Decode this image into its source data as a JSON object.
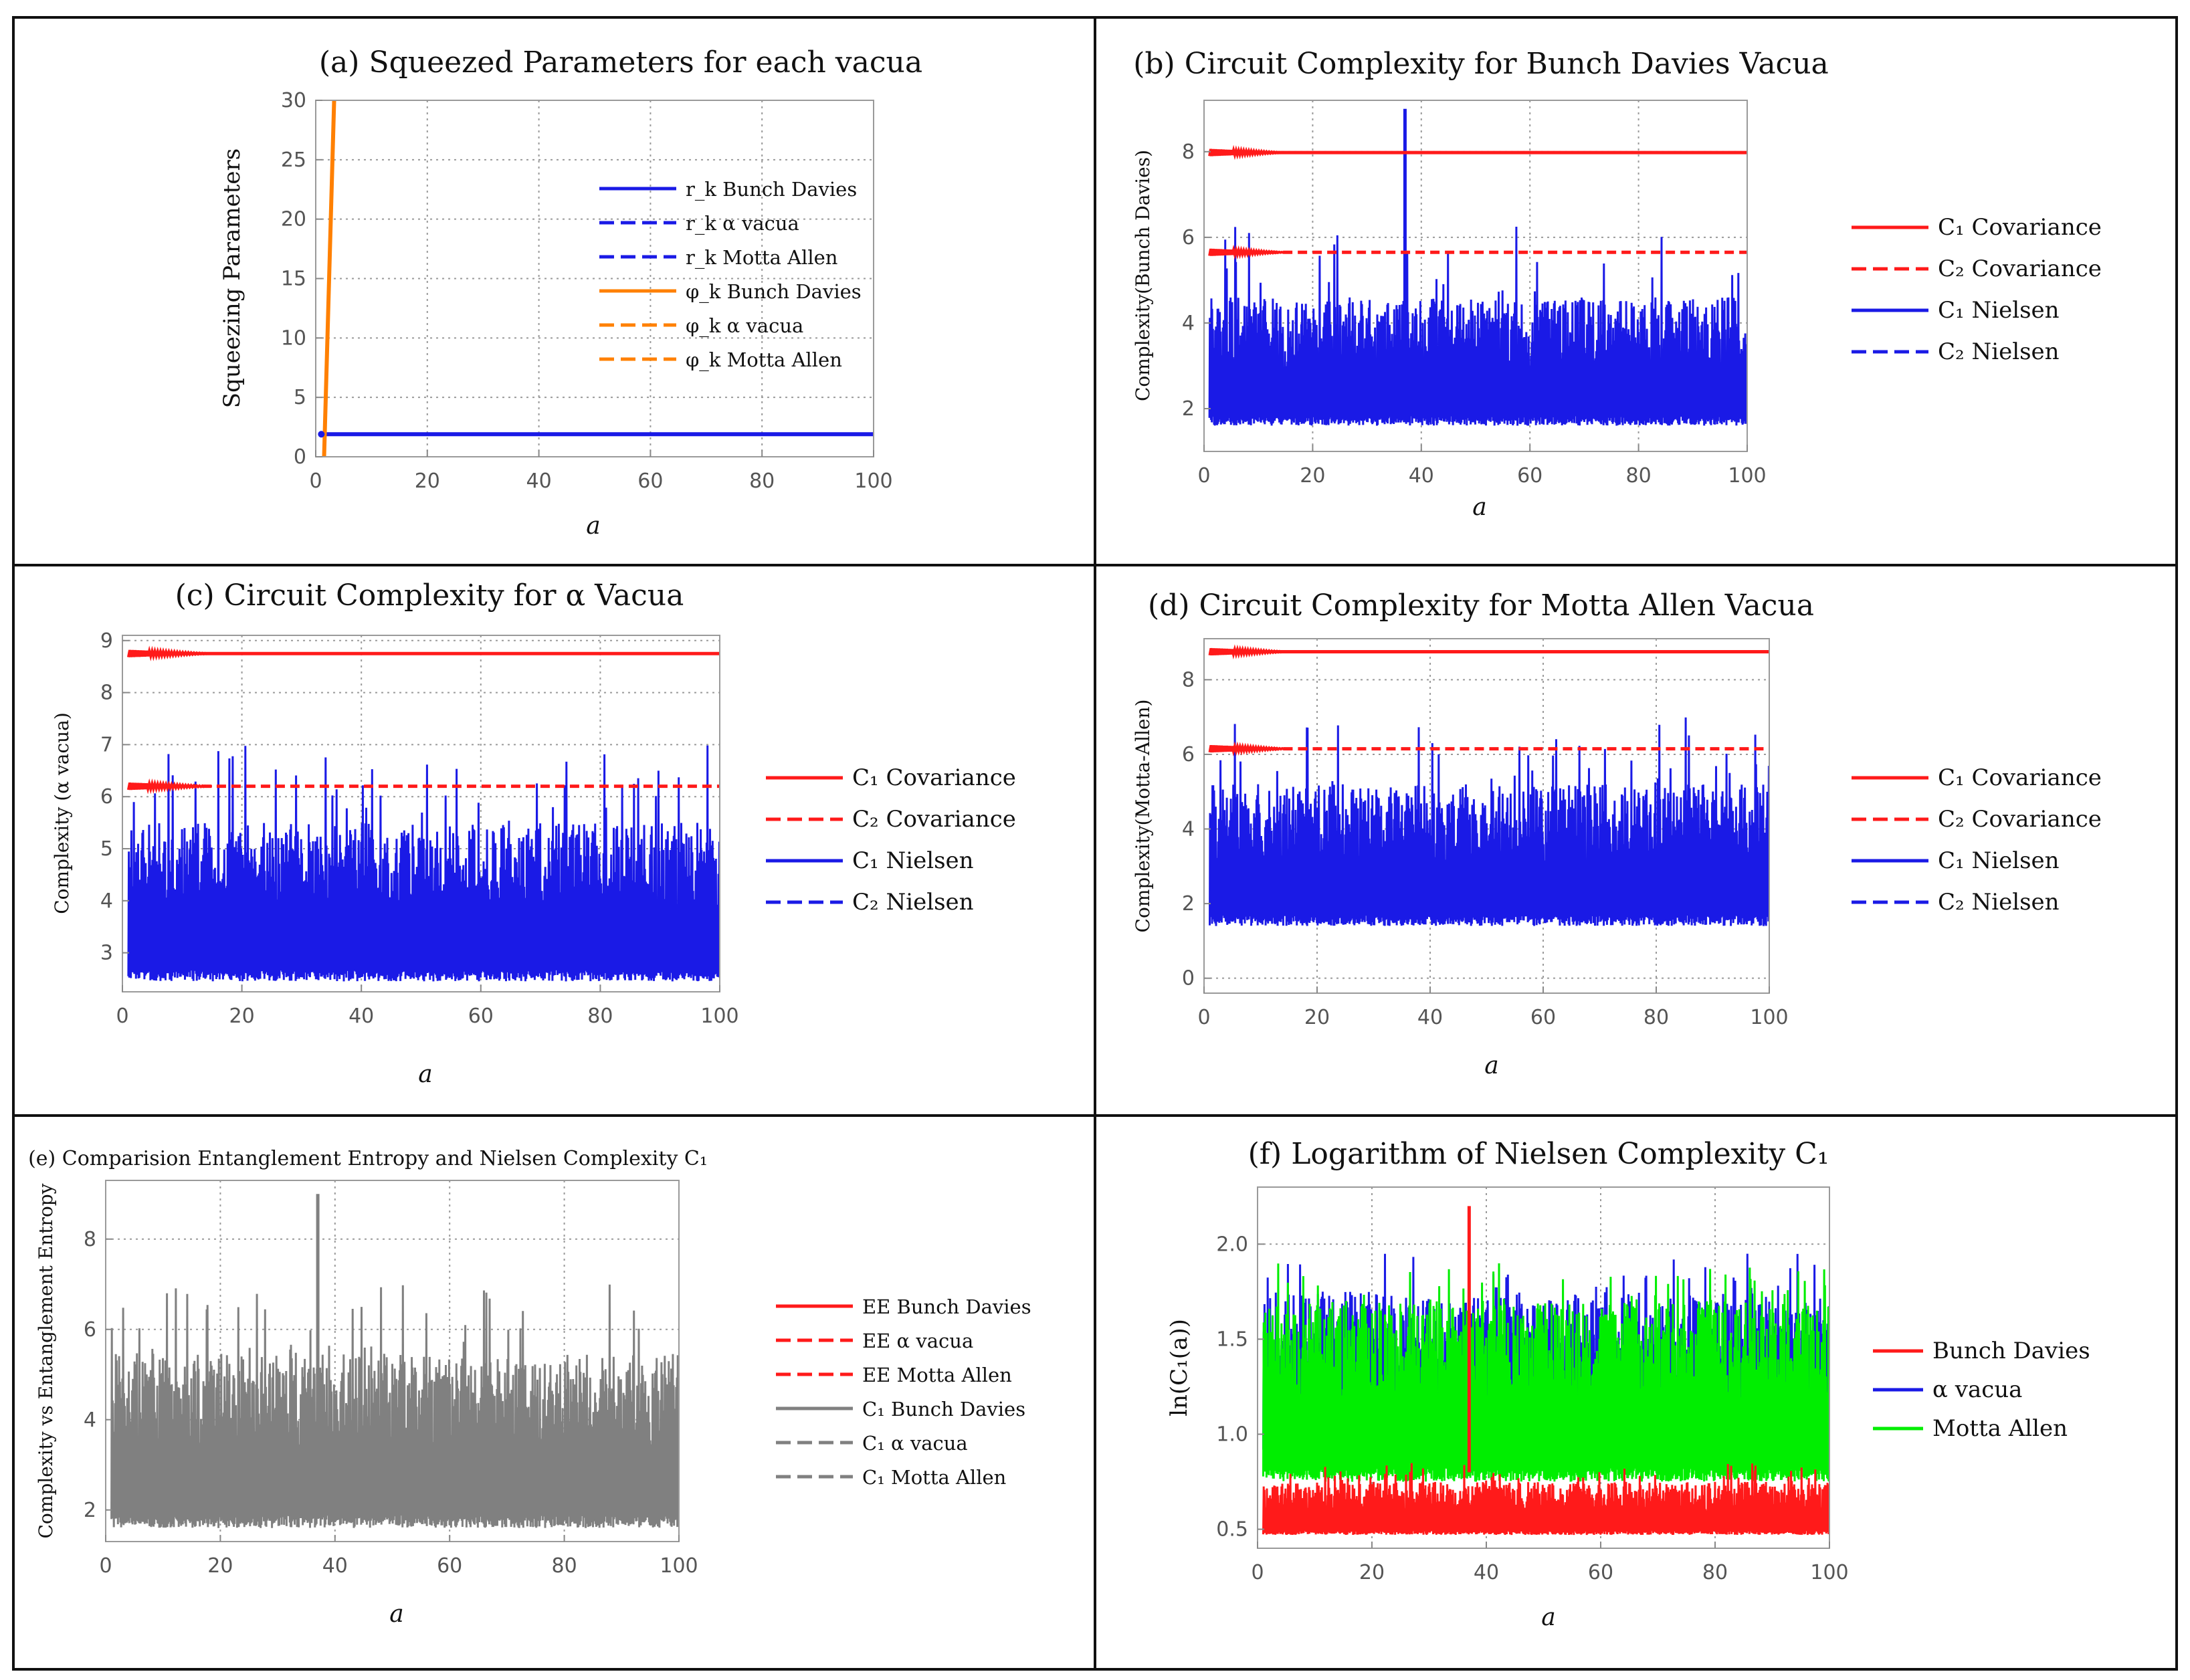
{
  "chart_data": [
    {
      "id": "a",
      "type": "line",
      "title": "(a) Squeezed Parameters for each vacua",
      "xlabel": "a",
      "ylabel": "Squeezing Parameters",
      "xlim": [
        0,
        100
      ],
      "ylim": [
        0,
        30
      ],
      "xticks": [
        0,
        20,
        40,
        60,
        80,
        100
      ],
      "yticks": [
        0,
        5,
        10,
        15,
        20,
        25,
        30
      ],
      "legend": [
        {
          "label": "r_k Bunch Davies",
          "color": "#1a1ae6",
          "dash": "solid"
        },
        {
          "label": "r_k α vacua",
          "color": "#1a1ae6",
          "dash": "dashed"
        },
        {
          "label": "r_k Motta Allen",
          "color": "#1a1ae6",
          "dash": "dashed"
        },
        {
          "label": "φ_k Bunch Davies",
          "color": "#ff8000",
          "dash": "solid"
        },
        {
          "label": "φ_k α vacua",
          "color": "#ff8000",
          "dash": "dashed"
        },
        {
          "label": "φ_k Motta Allen",
          "color": "#ff8000",
          "dash": "dashed"
        }
      ],
      "series": [
        {
          "name": "r_k",
          "color": "#1a1ae6",
          "x": [
            1,
            100
          ],
          "y": [
            1.9,
            1.9
          ]
        },
        {
          "name": "φ_k",
          "color": "#ff8000",
          "x": [
            1.5,
            3.3
          ],
          "y": [
            0,
            30
          ]
        }
      ]
    },
    {
      "id": "b",
      "type": "line",
      "title": "(b) Circuit Complexity for Bunch Davies Vacua",
      "xlabel": "a",
      "ylabel": "Complexity(Bunch Davies)",
      "xlim": [
        0,
        100
      ],
      "ylim": [
        1,
        9.2
      ],
      "xticks": [
        0,
        20,
        40,
        60,
        80,
        100
      ],
      "yticks": [
        2,
        4,
        6,
        8
      ],
      "legend": [
        {
          "label": "C₁ Covariance",
          "color": "#ff1a1a",
          "dash": "solid"
        },
        {
          "label": "C₂ Covariance",
          "color": "#ff1a1a",
          "dash": "dashed"
        },
        {
          "label": "C₁ Nielsen",
          "color": "#1a1ae6",
          "dash": "solid"
        },
        {
          "label": "C₂ Nielsen",
          "color": "#1a1ae6",
          "dash": "dashed"
        }
      ],
      "band": {
        "color": "#1a1ae6",
        "min": 1.6,
        "typ_top": 4.6,
        "peak_top": 6.3
      },
      "hlines": [
        {
          "y": 7.98,
          "color": "#ff1a1a",
          "dash": "solid"
        },
        {
          "y": 5.65,
          "color": "#ff1a1a",
          "dash": "dashed"
        }
      ],
      "spikes": [
        {
          "x": 37,
          "y": 9.0
        }
      ]
    },
    {
      "id": "c",
      "type": "line",
      "title": "(c) Circuit Complexity for α Vacua",
      "xlabel": "a",
      "ylabel": "Complexity (α vacua)",
      "xlim": [
        0,
        100
      ],
      "ylim": [
        2.25,
        9.1
      ],
      "xticks": [
        0,
        20,
        40,
        60,
        80,
        100
      ],
      "yticks": [
        3,
        4,
        5,
        6,
        7,
        8,
        9
      ],
      "legend": [
        {
          "label": "C₁ Covariance",
          "color": "#ff1a1a",
          "dash": "solid"
        },
        {
          "label": "C₂ Covariance",
          "color": "#ff1a1a",
          "dash": "dashed"
        },
        {
          "label": "C₁ Nielsen",
          "color": "#1a1ae6",
          "dash": "solid"
        },
        {
          "label": "C₂ Nielsen",
          "color": "#1a1ae6",
          "dash": "dashed"
        }
      ],
      "band": {
        "color": "#1a1ae6",
        "min": 2.45,
        "typ_top": 5.5,
        "peak_top": 7.0
      },
      "hlines": [
        {
          "y": 8.75,
          "color": "#ff1a1a",
          "dash": "solid"
        },
        {
          "y": 6.2,
          "color": "#ff1a1a",
          "dash": "dashed"
        }
      ],
      "spikes": []
    },
    {
      "id": "d",
      "type": "line",
      "title": "(d) Circuit Complexity for Motta Allen Vacua",
      "xlabel": "a",
      "ylabel": "Complexity(Motta-Allen)",
      "xlim": [
        0,
        100
      ],
      "ylim": [
        -0.4,
        9.1
      ],
      "xticks": [
        0,
        20,
        40,
        60,
        80,
        100
      ],
      "yticks": [
        0,
        2,
        4,
        6,
        8
      ],
      "legend": [
        {
          "label": "C₁ Covariance",
          "color": "#ff1a1a",
          "dash": "solid"
        },
        {
          "label": "C₂ Covariance",
          "color": "#ff1a1a",
          "dash": "dashed"
        },
        {
          "label": "C₁ Nielsen",
          "color": "#1a1ae6",
          "dash": "solid"
        },
        {
          "label": "C₂ Nielsen",
          "color": "#1a1ae6",
          "dash": "dashed"
        }
      ],
      "band": {
        "color": "#1a1ae6",
        "min": 1.4,
        "typ_top": 5.2,
        "peak_top": 7.0
      },
      "hlines": [
        {
          "y": 8.75,
          "color": "#ff1a1a",
          "dash": "solid"
        },
        {
          "y": 6.15,
          "color": "#ff1a1a",
          "dash": "dashed"
        }
      ],
      "spikes": []
    },
    {
      "id": "e",
      "type": "line",
      "title": "(e) Comparision Entanglement Entropy and Nielsen Complexity C₁",
      "xlabel": "a",
      "ylabel": "Complexity vs Entanglement Entropy",
      "xlim": [
        0,
        100
      ],
      "ylim": [
        1.3,
        9.3
      ],
      "xticks": [
        0,
        20,
        40,
        60,
        80,
        100
      ],
      "yticks": [
        2,
        4,
        6,
        8
      ],
      "legend": [
        {
          "label": "EE Bunch Davies",
          "color": "#ff1a1a",
          "dash": "solid"
        },
        {
          "label": "EE α vacua",
          "color": "#ff1a1a",
          "dash": "dashed"
        },
        {
          "label": "EE Motta Allen",
          "color": "#ff1a1a",
          "dash": "dashed"
        },
        {
          "label": "C₁ Bunch Davies",
          "color": "#808080",
          "dash": "solid"
        },
        {
          "label": "C₁ α vacua",
          "color": "#808080",
          "dash": "dashed"
        },
        {
          "label": "C₁ Motta Allen",
          "color": "#808080",
          "dash": "dashed"
        }
      ],
      "band": {
        "color": "#808080",
        "min": 1.6,
        "typ_top": 5.5,
        "peak_top": 7.0
      },
      "hlines": [],
      "spikes": [
        {
          "x": 37,
          "y": 9.0
        }
      ]
    },
    {
      "id": "f",
      "type": "line",
      "title": "(f) Logarithm of Nielsen Complexity C₁",
      "xlabel": "a",
      "ylabel": "ln(C₁(a))",
      "xlim": [
        0,
        100
      ],
      "ylim": [
        0.4,
        2.3
      ],
      "xticks": [
        0,
        20,
        40,
        60,
        80,
        100
      ],
      "yticks": [
        0.5,
        1.0,
        1.5,
        2.0
      ],
      "ytick_labels": [
        "0.5",
        "1.0",
        "1.5",
        "2.0"
      ],
      "legend": [
        {
          "label": "Bunch Davies",
          "color": "#ff1a1a",
          "dash": "solid"
        },
        {
          "label": "α vacua",
          "color": "#1a1ae6",
          "dash": "solid"
        },
        {
          "label": "Motta Allen",
          "color": "#00ee00",
          "dash": "solid"
        }
      ],
      "bands": [
        {
          "name": "α vacua",
          "color": "#1a1ae6",
          "min": 0.9,
          "top": 1.75,
          "peak": 1.95
        },
        {
          "name": "Motta Allen",
          "color": "#00ee00",
          "min": 0.75,
          "top": 1.7,
          "peak": 1.9
        },
        {
          "name": "Bunch Davies",
          "color": "#ff1a1a",
          "min": 0.47,
          "top": 0.75,
          "peak": 0.85
        }
      ],
      "spikes": [
        {
          "x": 37,
          "y": 2.2,
          "color": "#ff1a1a"
        }
      ]
    }
  ]
}
